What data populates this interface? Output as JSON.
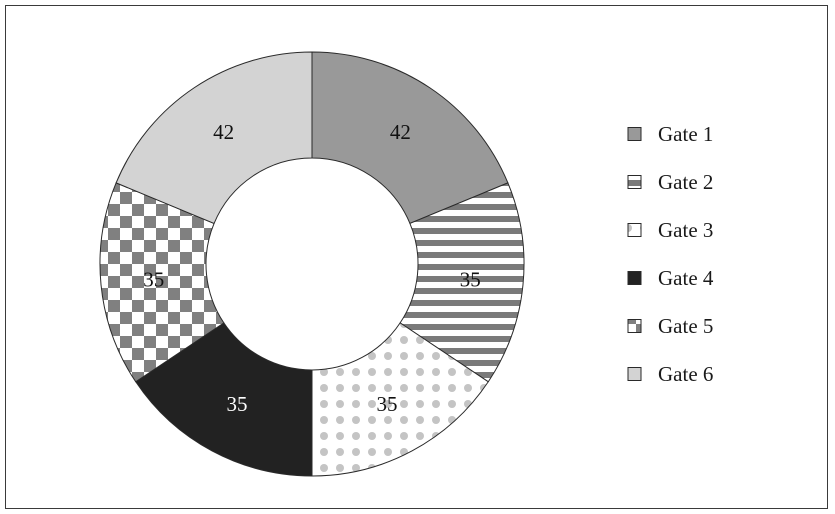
{
  "chart_data": {
    "type": "pie",
    "variant": "donut",
    "categories": [
      "Gate 1",
      "Gate 2",
      "Gate 3",
      "Gate 4",
      "Gate 5",
      "Gate 6"
    ],
    "values": [
      42,
      35,
      35,
      35,
      35,
      42
    ],
    "data_labels": [
      "42",
      "35",
      "35",
      "35",
      "35",
      "42"
    ],
    "legend": {
      "placement": "right",
      "entries": [
        "Gate 1",
        "Gate 2",
        "Gate 3",
        "Gate 4",
        "Gate 5",
        "Gate 6"
      ]
    },
    "fills": [
      {
        "pattern": "solid",
        "color": "#999999"
      },
      {
        "pattern": "horizontal-stripes",
        "color": "#7a7a7a",
        "background": "#ffffff"
      },
      {
        "pattern": "dots",
        "color": "#c4c4c4",
        "background": "#ffffff"
      },
      {
        "pattern": "solid",
        "color": "#222222"
      },
      {
        "pattern": "checkerboard",
        "color": "#808080",
        "background": "#ffffff"
      },
      {
        "pattern": "solid",
        "color": "#d3d3d3"
      }
    ],
    "label_colors": [
      "#111111",
      "#111111",
      "#111111",
      "#ffffff",
      "#111111",
      "#111111"
    ],
    "start_direction": "top",
    "direction": "clockwise"
  }
}
